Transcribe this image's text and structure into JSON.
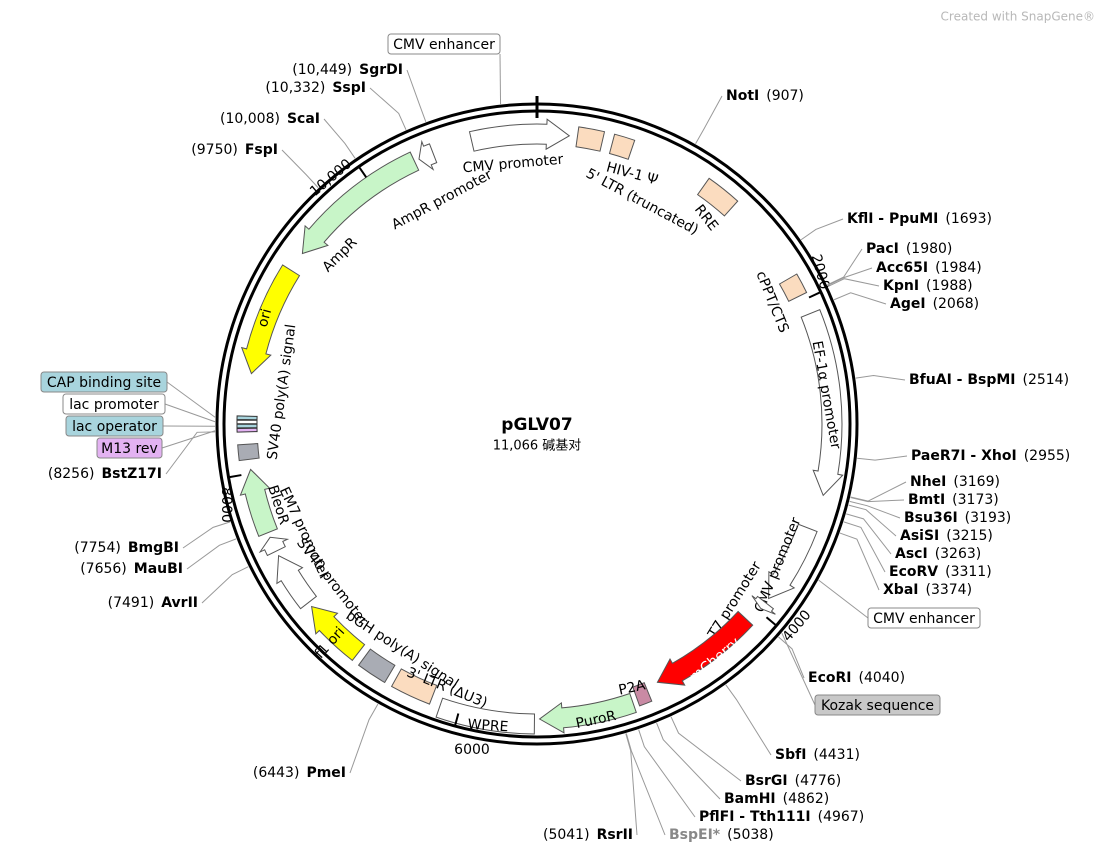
{
  "header": {
    "watermark": "Created with SnapGene®"
  },
  "plasmid": {
    "name": "pGLV07",
    "size": "11,066 碱基对"
  },
  "ticks": [
    2000,
    4000,
    6000,
    8000,
    {
      "value": 10000,
      "label": "10,000"
    }
  ],
  "features": [
    {
      "label": "CMV promoter",
      "color": "#ffffff"
    },
    {
      "label": "5' LTR (truncated)",
      "color": "#fbdcbf"
    },
    {
      "label": "HIV-1 Ψ",
      "color": "#fbdcbf"
    },
    {
      "label": "RRE",
      "color": "#fbdcbf"
    },
    {
      "label": "cPPT/CTS",
      "color": "#fbdcbf"
    },
    {
      "label": "EF-1α promoter",
      "color": "#ffffff"
    },
    {
      "label": "CMV promoter",
      "color": "#ffffff"
    },
    {
      "label": "T7 promoter",
      "color": "#ffffff"
    },
    {
      "label": "mCherry",
      "color": "#ff0000"
    },
    {
      "label": "P2A",
      "color": "#c98aa4"
    },
    {
      "label": "PuroR",
      "color": "#c8f5c8"
    },
    {
      "label": "WPRE",
      "color": "#ffffff"
    },
    {
      "label": "3' LTR (ΔU3)",
      "color": "#fbdcbf"
    },
    {
      "label": "bGH poly(A) signal",
      "color": "#a9acb4"
    },
    {
      "label": "f1 ori",
      "color": "#ffff00"
    },
    {
      "label": "SV40 promoter",
      "color": "#ffffff"
    },
    {
      "label": "EM7 promoter",
      "color": "#ffffff"
    },
    {
      "label": "BleoR",
      "color": "#c8f5c8"
    },
    {
      "label": "SV40 poly(A) signal",
      "color": "#a9acb4"
    },
    {
      "label": "ori",
      "color": "#ffff00"
    },
    {
      "label": "AmpR",
      "color": "#c8f5c8"
    },
    {
      "label": "AmpR promoter",
      "color": "#ffffff"
    }
  ],
  "boxed_labels": [
    {
      "label": "CMV enhancer",
      "color": "#ffffff"
    },
    {
      "label": "CAP binding site",
      "color": "#a8d4dd"
    },
    {
      "label": "lac promoter",
      "color": "#ffffff"
    },
    {
      "label": "lac operator",
      "color": "#a8d4dd"
    },
    {
      "label": "M13 rev",
      "color": "#e3b2f2"
    },
    {
      "label": "CMV enhancer",
      "color": "#ffffff"
    },
    {
      "label": "Kozak sequence",
      "color": "#c8c8c8"
    }
  ],
  "sites": [
    {
      "name": "NotI",
      "position": "(907)"
    },
    {
      "name": "KflI - PpuMI",
      "position": "(1693)"
    },
    {
      "name": "PacI",
      "position": "(1980)"
    },
    {
      "name": "Acc65I",
      "position": "(1984)"
    },
    {
      "name": "KpnI",
      "position": "(1988)"
    },
    {
      "name": "AgeI",
      "position": "(2068)"
    },
    {
      "name": "BfuAI - BspMI",
      "position": "(2514)"
    },
    {
      "name": "PaeR7I - XhoI",
      "position": "(2955)"
    },
    {
      "name": "NheI",
      "position": "(3169)"
    },
    {
      "name": "BmtI",
      "position": "(3173)"
    },
    {
      "name": "Bsu36I",
      "position": "(3193)"
    },
    {
      "name": "AsiSI",
      "position": "(3215)"
    },
    {
      "name": "AscI",
      "position": "(3263)"
    },
    {
      "name": "EcoRV",
      "position": "(3311)"
    },
    {
      "name": "XbaI",
      "position": "(3374)"
    },
    {
      "name": "EcoRI",
      "position": "(4040)"
    },
    {
      "name": "SbfI",
      "position": "(4431)"
    },
    {
      "name": "BsrGI",
      "position": "(4776)"
    },
    {
      "name": "BamHI",
      "position": "(4862)"
    },
    {
      "name": "PflFI - Tth111I",
      "position": "(4967)"
    },
    {
      "name": "BspEI*",
      "position": "(5038)"
    },
    {
      "name": "RsrII",
      "position": "(5041)"
    },
    {
      "name": "PmeI",
      "position": "(6443)"
    },
    {
      "name": "AvrII",
      "position": "(7491)"
    },
    {
      "name": "MauBI",
      "position": "(7656)"
    },
    {
      "name": "BmgBI",
      "position": "(7754)"
    },
    {
      "name": "BstZ17I",
      "position": "(8256)"
    },
    {
      "name": "FspI",
      "position": "(9750)"
    },
    {
      "name": "ScaI",
      "position": "(10,008)"
    },
    {
      "name": "SspI",
      "position": "(10,332)"
    },
    {
      "name": "SgrDI",
      "position": "(10,449)"
    }
  ]
}
